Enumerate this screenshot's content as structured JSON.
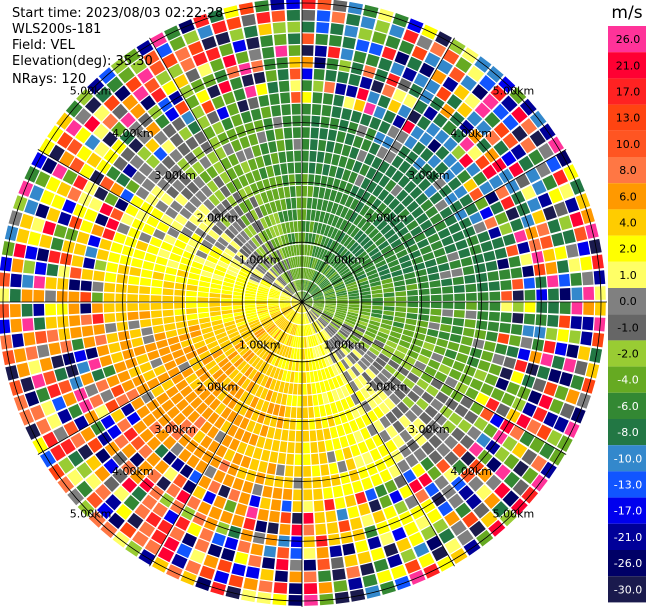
{
  "meta": {
    "start_time": "Start time: 2023/08/03 02:22:28",
    "instrument": "WLS200s-181",
    "field": "Field: VEL",
    "elevation": "Elevation(deg): 35.30",
    "nrays": "NRays: 120"
  },
  "colorbar": {
    "unit": "m/s",
    "ticks": [
      "26.0",
      "21.0",
      "17.0",
      "13.0",
      "10.0",
      "8.0",
      "6.0",
      "4.0",
      "2.0",
      "1.0",
      "0.0",
      "-1.0",
      "-2.0",
      "-4.0",
      "-6.0",
      "-8.0",
      "-10.0",
      "-13.0",
      "-17.0",
      "-21.0",
      "-26.0",
      "-30.0"
    ],
    "colors": [
      "#ff3399",
      "#ff0033",
      "#ff2222",
      "#ff4411",
      "#ff5522",
      "#ff7744",
      "#ff9900",
      "#ffcc00",
      "#ffff00",
      "#ffff66",
      "#808080",
      "#666666",
      "#99cc33",
      "#66aa22",
      "#338833",
      "#227744",
      "#3388cc",
      "#1155ff",
      "#0000ee",
      "#000099",
      "#000066",
      "#1a1a4d"
    ]
  },
  "chart_data": {
    "type": "ppi",
    "field": "VEL",
    "units": "m/s",
    "nrays": 120,
    "elevation_deg": 35.3,
    "ring_labels": [
      "1.00km",
      "2.00km",
      "3.00km",
      "4.00km",
      "5.00km"
    ],
    "ring_radii_km": [
      1,
      2,
      3,
      4,
      5
    ],
    "max_range_km": 5.1,
    "colorbar_range": [
      -30,
      26
    ]
  }
}
